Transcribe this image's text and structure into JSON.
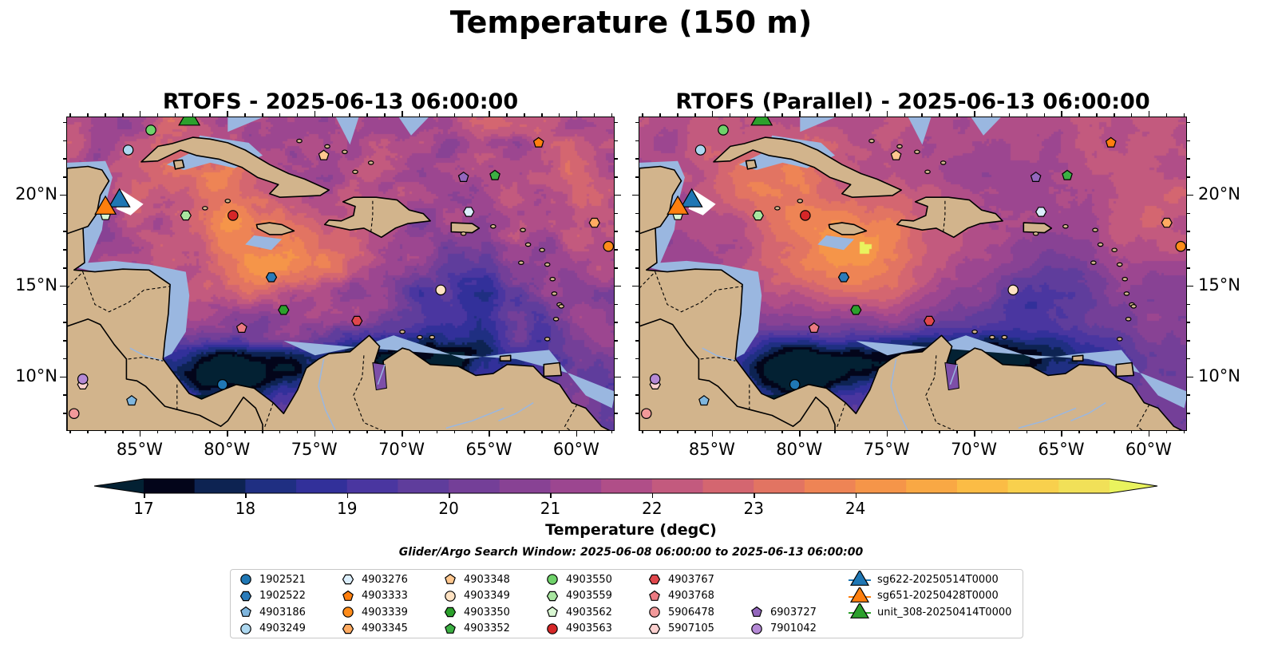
{
  "figure": {
    "title": "Temperature (150 m)",
    "search_window": "Glider/Argo Search Window: 2025-06-08 06:00:00 to 2025-06-13 06:00:00"
  },
  "panels": [
    {
      "title": "RTOFS - 2025-06-13 06:00:00",
      "variant": "rtofs"
    },
    {
      "title": "RTOFS (Parallel) - 2025-06-13 06:00:00",
      "variant": "parallel"
    }
  ],
  "axes": {
    "lon_range": [
      -89.2,
      -57.8
    ],
    "lat_range": [
      7.0,
      24.3
    ],
    "lon_ticks": [
      {
        "value": -85,
        "label": "85°W"
      },
      {
        "value": -80,
        "label": "80°W"
      },
      {
        "value": -75,
        "label": "75°W"
      },
      {
        "value": -70,
        "label": "70°W"
      },
      {
        "value": -65,
        "label": "65°W"
      },
      {
        "value": -60,
        "label": "60°W"
      }
    ],
    "lat_ticks": [
      {
        "value": 20,
        "label": "20°N"
      },
      {
        "value": 15,
        "label": "15°N"
      },
      {
        "value": 10,
        "label": "10°N"
      }
    ]
  },
  "colorbar": {
    "label": "Temperature (degC)",
    "min": 17,
    "max": 24.5,
    "step": 0.5,
    "extend": "both",
    "ticks": [
      {
        "value": 17,
        "label": "17"
      },
      {
        "value": 18,
        "label": "18"
      },
      {
        "value": 19,
        "label": "19"
      },
      {
        "value": 20,
        "label": "20"
      },
      {
        "value": 21,
        "label": "21"
      },
      {
        "value": 22,
        "label": "22"
      },
      {
        "value": 23,
        "label": "23"
      },
      {
        "value": 24,
        "label": "24"
      }
    ],
    "colors": [
      "#03051a",
      "#0d2352",
      "#1f2f82",
      "#32309a",
      "#4a36a0",
      "#5f3d9c",
      "#743f98",
      "#884294",
      "#9c4690",
      "#b04e88",
      "#c35a7e",
      "#d46670",
      "#e27462",
      "#ee8455",
      "#f59549",
      "#f9a844",
      "#fbbc45",
      "#f8d04d",
      "#f1e058"
    ],
    "under_color": "#032133",
    "over_color": "#e9f35e"
  },
  "map_colors": {
    "land": "#d2b48c",
    "shelf": "#9ab7e0",
    "coast": "#000000",
    "rivers": "#9ab7e0"
  },
  "chart_data": {
    "type": "scatter",
    "markers": [
      {
        "name": "1902521",
        "shape": "circle",
        "color": "#1f77b4",
        "lon": -80.3,
        "lat": 9.6
      },
      {
        "name": "1902522",
        "shape": "hexagon",
        "color": "#2a7bb9",
        "lon": -77.5,
        "lat": 15.5
      },
      {
        "name": "4903186",
        "shape": "pentagon",
        "color": "#7fb6de",
        "lon": -85.5,
        "lat": 8.7
      },
      {
        "name": "4903249",
        "shape": "circle",
        "color": "#add8f0",
        "lon": -85.7,
        "lat": 22.5
      },
      {
        "name": "4903276",
        "shape": "hexagon",
        "color": "#dbeefc",
        "lon": -66.2,
        "lat": 19.1
      },
      {
        "name": "4903333",
        "shape": "pentagon",
        "color": "#ff7f0e",
        "lon": -62.2,
        "lat": 22.9
      },
      {
        "name": "4903339",
        "shape": "circle",
        "color": "#ff8c1a",
        "lon": -58.2,
        "lat": 17.2
      },
      {
        "name": "4903345",
        "shape": "hexagon",
        "color": "#ffab61",
        "lon": -59.0,
        "lat": 18.5
      },
      {
        "name": "4903348",
        "shape": "pentagon",
        "color": "#ffc78f",
        "lon": -74.5,
        "lat": 22.2
      },
      {
        "name": "4903349",
        "shape": "circle",
        "color": "#ffe2c2",
        "lon": -67.8,
        "lat": 14.8
      },
      {
        "name": "4903350",
        "shape": "hexagon",
        "color": "#2ca02c",
        "lon": -76.8,
        "lat": 13.7
      },
      {
        "name": "4903352",
        "shape": "pentagon",
        "color": "#3cb043",
        "lon": -64.7,
        "lat": 21.1
      },
      {
        "name": "4903550",
        "shape": "circle",
        "color": "#6fd26a",
        "lon": -84.4,
        "lat": 23.6
      },
      {
        "name": "4903559",
        "shape": "hexagon",
        "color": "#a8e6a0",
        "lon": -82.4,
        "lat": 18.9
      },
      {
        "name": "4903562",
        "shape": "pentagon",
        "color": "#d9f7d2",
        "lon": -87.0,
        "lat": 18.9
      },
      {
        "name": "4903563",
        "shape": "circle",
        "color": "#d62728",
        "lon": -79.7,
        "lat": 18.9
      },
      {
        "name": "4903767",
        "shape": "hexagon",
        "color": "#e0474c",
        "lon": -72.6,
        "lat": 13.1
      },
      {
        "name": "4903768",
        "shape": "pentagon",
        "color": "#ec7a82",
        "lon": -79.2,
        "lat": 12.7
      },
      {
        "name": "5906478",
        "shape": "circle",
        "color": "#f2999a",
        "lon": -88.8,
        "lat": 8.0
      },
      {
        "name": "5907105",
        "shape": "hexagon",
        "color": "#fbd0cf",
        "lon": -88.3,
        "lat": 9.6
      },
      {
        "name": "6903727",
        "shape": "pentagon",
        "color": "#9467bd",
        "lon": -66.5,
        "lat": 21.0
      },
      {
        "name": "7901042",
        "shape": "circle",
        "color": "#b589d6",
        "lon": -88.3,
        "lat": 9.9
      },
      {
        "name": "sg622-20250514T0000",
        "shape": "triangle",
        "color": "#1f77b4",
        "lon": -86.2,
        "lat": 19.7
      },
      {
        "name": "sg651-20250428T0000",
        "shape": "triangle",
        "color": "#ff7f0e",
        "lon": -87.0,
        "lat": 19.3
      },
      {
        "name": "unit_308-20250414T0000",
        "shape": "triangle",
        "color": "#2ca02c",
        "lon": -82.2,
        "lat": 24.2
      }
    ]
  }
}
